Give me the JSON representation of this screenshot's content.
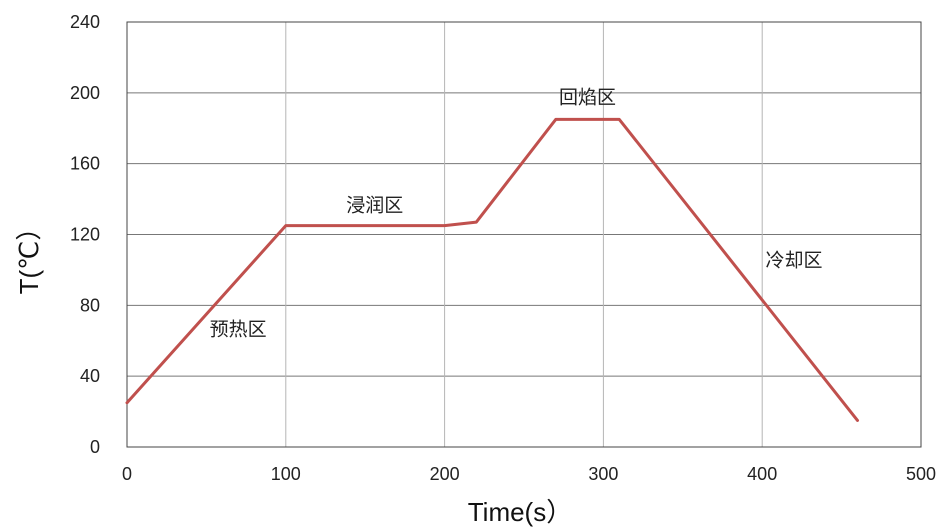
{
  "chart_data": {
    "type": "line",
    "xlabel": "Time(s）",
    "ylabel": "T(℃）",
    "xlim": [
      0,
      500
    ],
    "ylim": [
      0,
      240
    ],
    "x_ticks": [
      0,
      100,
      200,
      300,
      400,
      500
    ],
    "y_ticks": [
      0,
      40,
      80,
      120,
      160,
      200,
      240
    ],
    "grid": true,
    "legend": "none",
    "series": [
      {
        "color": "#c0504d",
        "points": [
          {
            "x": 0,
            "y": 25
          },
          {
            "x": 100,
            "y": 125
          },
          {
            "x": 200,
            "y": 125
          },
          {
            "x": 220,
            "y": 127
          },
          {
            "x": 270,
            "y": 185
          },
          {
            "x": 310,
            "y": 185
          },
          {
            "x": 460,
            "y": 15
          }
        ]
      }
    ],
    "annotations": [
      {
        "text": "预热区",
        "x": 70,
        "y": 63
      },
      {
        "text": "浸润区",
        "x": 156,
        "y": 133
      },
      {
        "text": "回焰区",
        "x": 290,
        "y": 194
      },
      {
        "text": "冷却区",
        "x": 420,
        "y": 102
      }
    ]
  }
}
